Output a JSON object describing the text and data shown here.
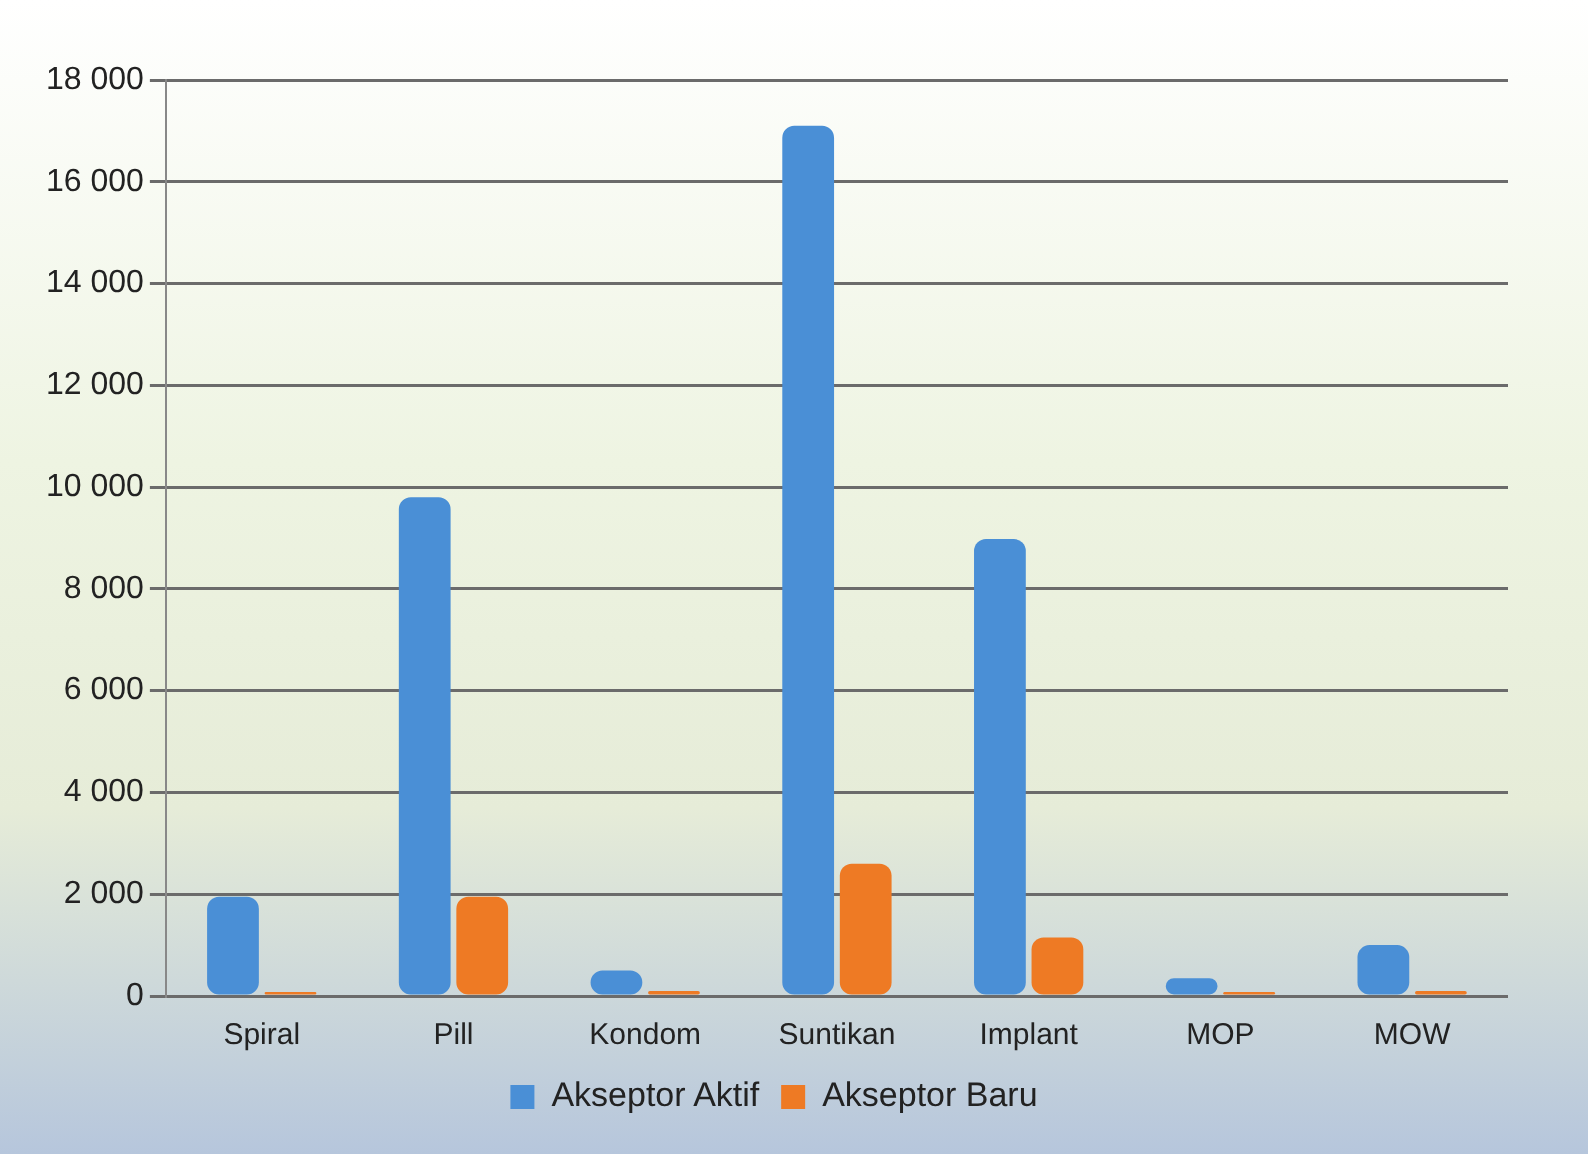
{
  "chart_data": {
    "type": "bar",
    "categories": [
      "Spiral",
      "Pill",
      "Kondom",
      "Suntikan",
      "Implant",
      "MOP",
      "MOW"
    ],
    "series": [
      {
        "name": "Akseptor Aktif",
        "color": "#4a8fd6",
        "values": [
          1950,
          9800,
          500,
          17100,
          8980,
          350,
          1000
        ]
      },
      {
        "name": "Akseptor Baru",
        "color": "#ee7a24",
        "values": [
          80,
          1950,
          100,
          2600,
          1150,
          80,
          100
        ]
      }
    ],
    "ylim": [
      0,
      18000
    ],
    "yticks": [
      {
        "value": 0,
        "label": "0"
      },
      {
        "value": 2000,
        "label": "2 000"
      },
      {
        "value": 4000,
        "label": "4 000"
      },
      {
        "value": 6000,
        "label": "6 000"
      },
      {
        "value": 8000,
        "label": "8 000"
      },
      {
        "value": 10000,
        "label": "10 000"
      },
      {
        "value": 12000,
        "label": "12 000"
      },
      {
        "value": 14000,
        "label": "14 000"
      },
      {
        "value": 16000,
        "label": "16 000"
      },
      {
        "value": 18000,
        "label": "18 000"
      }
    ],
    "grid": "y",
    "legend": "bottom"
  }
}
